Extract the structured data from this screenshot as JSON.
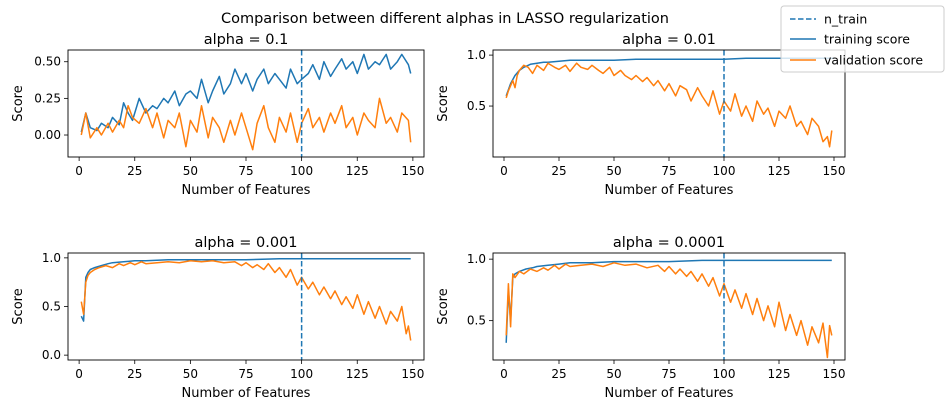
{
  "figure": {
    "suptitle": "Comparison between different alphas in LASSO regularization",
    "legend": {
      "placement": "top-right",
      "entries": [
        {
          "label": "n_train",
          "color": "#1f77b4",
          "style": "dashed"
        },
        {
          "label": "training score",
          "color": "#1f77b4",
          "style": "solid"
        },
        {
          "label": "validation score",
          "color": "#ff7f0e",
          "style": "solid"
        }
      ]
    }
  },
  "chart_data": [
    {
      "type": "line",
      "title": "alpha = 0.1",
      "xlabel": "Number of Features",
      "ylabel": "Score",
      "xlim": [
        -5,
        155
      ],
      "ylim": [
        -0.15,
        0.58
      ],
      "xticks": [
        0,
        25,
        50,
        75,
        100,
        125,
        150
      ],
      "yticks": [
        0.0,
        0.25,
        0.5
      ],
      "ytick_labels": [
        "0.00",
        "0.25",
        "0.50"
      ],
      "vline": 100,
      "series": [
        {
          "name": "training score",
          "color": "#1f77b4",
          "x": [
            1,
            3,
            5,
            8,
            10,
            13,
            15,
            18,
            20,
            22,
            24,
            27,
            30,
            33,
            35,
            38,
            40,
            43,
            45,
            48,
            50,
            53,
            55,
            58,
            60,
            63,
            65,
            68,
            70,
            73,
            75,
            78,
            80,
            83,
            85,
            88,
            90,
            93,
            95,
            98,
            100,
            103,
            105,
            108,
            110,
            113,
            115,
            118,
            120,
            123,
            125,
            128,
            130,
            133,
            135,
            138,
            140,
            143,
            145,
            148,
            149
          ],
          "values": [
            0.02,
            0.15,
            0.05,
            0.03,
            0.08,
            0.05,
            0.12,
            0.07,
            0.22,
            0.15,
            0.1,
            0.25,
            0.15,
            0.2,
            0.18,
            0.25,
            0.22,
            0.3,
            0.2,
            0.28,
            0.3,
            0.25,
            0.38,
            0.22,
            0.3,
            0.4,
            0.28,
            0.35,
            0.45,
            0.35,
            0.42,
            0.3,
            0.38,
            0.45,
            0.35,
            0.42,
            0.38,
            0.32,
            0.45,
            0.35,
            0.38,
            0.42,
            0.48,
            0.38,
            0.5,
            0.4,
            0.45,
            0.52,
            0.45,
            0.5,
            0.42,
            0.55,
            0.45,
            0.5,
            0.48,
            0.55,
            0.45,
            0.5,
            0.55,
            0.48,
            0.42
          ]
        },
        {
          "name": "validation score",
          "color": "#ff7f0e",
          "x": [
            1,
            3,
            5,
            8,
            10,
            13,
            15,
            18,
            20,
            22,
            24,
            27,
            30,
            33,
            35,
            38,
            40,
            43,
            45,
            48,
            50,
            53,
            55,
            58,
            60,
            63,
            65,
            68,
            70,
            73,
            75,
            78,
            80,
            83,
            85,
            88,
            90,
            93,
            95,
            98,
            100,
            103,
            105,
            108,
            110,
            113,
            115,
            118,
            120,
            123,
            125,
            128,
            130,
            133,
            135,
            138,
            140,
            143,
            145,
            148,
            149
          ],
          "values": [
            0.0,
            0.15,
            -0.02,
            0.05,
            0.0,
            0.08,
            0.02,
            0.1,
            0.05,
            0.2,
            0.12,
            0.08,
            0.18,
            0.05,
            0.15,
            -0.02,
            0.1,
            0.05,
            0.15,
            -0.08,
            0.1,
            0.02,
            0.2,
            -0.02,
            0.12,
            0.05,
            -0.05,
            0.1,
            0.0,
            0.15,
            0.05,
            -0.1,
            0.08,
            0.2,
            0.05,
            -0.05,
            0.12,
            0.02,
            0.15,
            -0.05,
            0.08,
            0.18,
            0.05,
            0.12,
            0.02,
            0.15,
            0.08,
            0.2,
            0.05,
            0.12,
            0.0,
            0.15,
            0.1,
            0.05,
            0.25,
            0.08,
            0.12,
            0.02,
            0.15,
            0.1,
            -0.05
          ]
        }
      ]
    },
    {
      "type": "line",
      "title": "alpha = 0.01",
      "xlabel": "Number of Features",
      "ylabel": "Score",
      "xlim": [
        -5,
        155
      ],
      "ylim": [
        0.0,
        1.05
      ],
      "xticks": [
        0,
        25,
        50,
        75,
        100,
        125,
        150
      ],
      "yticks": [
        0.5,
        1.0
      ],
      "ytick_labels": [
        "0.5",
        "1.0"
      ],
      "vline": 100,
      "series": [
        {
          "name": "training score",
          "color": "#1f77b4",
          "x": [
            1,
            3,
            5,
            7,
            9,
            12,
            15,
            18,
            20,
            25,
            30,
            35,
            40,
            50,
            60,
            70,
            80,
            90,
            100,
            110,
            120,
            125,
            130,
            135,
            140,
            145,
            150
          ],
          "values": [
            0.6,
            0.72,
            0.8,
            0.85,
            0.88,
            0.91,
            0.92,
            0.93,
            0.93,
            0.94,
            0.95,
            0.95,
            0.95,
            0.95,
            0.96,
            0.96,
            0.96,
            0.96,
            0.96,
            0.97,
            0.97,
            0.97,
            0.97,
            0.97,
            0.97,
            0.97,
            0.97
          ]
        },
        {
          "name": "validation score",
          "color": "#ff7f0e",
          "x": [
            1,
            2,
            3,
            4,
            5,
            6,
            7,
            9,
            11,
            13,
            15,
            18,
            20,
            23,
            25,
            28,
            30,
            33,
            35,
            38,
            40,
            43,
            45,
            48,
            50,
            53,
            55,
            58,
            60,
            63,
            65,
            68,
            70,
            73,
            75,
            78,
            80,
            83,
            85,
            88,
            90,
            93,
            95,
            98,
            100,
            103,
            105,
            108,
            110,
            113,
            115,
            118,
            120,
            123,
            125,
            128,
            130,
            133,
            135,
            138,
            140,
            143,
            145,
            147,
            148,
            149
          ],
          "values": [
            0.58,
            0.65,
            0.7,
            0.75,
            0.68,
            0.8,
            0.85,
            0.9,
            0.88,
            0.82,
            0.9,
            0.85,
            0.92,
            0.88,
            0.86,
            0.9,
            0.84,
            0.92,
            0.88,
            0.86,
            0.9,
            0.85,
            0.82,
            0.88,
            0.8,
            0.85,
            0.8,
            0.76,
            0.8,
            0.74,
            0.78,
            0.7,
            0.75,
            0.65,
            0.72,
            0.6,
            0.7,
            0.66,
            0.55,
            0.68,
            0.6,
            0.5,
            0.65,
            0.42,
            0.55,
            0.45,
            0.62,
            0.4,
            0.5,
            0.35,
            0.55,
            0.42,
            0.48,
            0.3,
            0.45,
            0.38,
            0.5,
            0.3,
            0.35,
            0.22,
            0.38,
            0.3,
            0.15,
            0.2,
            0.1,
            0.26
          ]
        }
      ]
    },
    {
      "type": "line",
      "title": "alpha = 0.001",
      "xlabel": "Number of Features",
      "ylabel": "Score",
      "xlim": [
        -5,
        155
      ],
      "ylim": [
        -0.05,
        1.05
      ],
      "xticks": [
        0,
        25,
        50,
        75,
        100,
        125,
        150
      ],
      "yticks": [
        0.0,
        0.5,
        1.0
      ],
      "ytick_labels": [
        "0.0",
        "0.5",
        "1.0"
      ],
      "vline": 100,
      "series": [
        {
          "name": "training score",
          "color": "#1f77b4",
          "x": [
            1,
            2,
            3,
            4,
            5,
            7,
            10,
            13,
            15,
            20,
            25,
            30,
            40,
            50,
            60,
            75,
            90,
            100,
            110,
            125,
            135,
            149
          ],
          "values": [
            0.4,
            0.35,
            0.8,
            0.85,
            0.88,
            0.9,
            0.92,
            0.94,
            0.95,
            0.96,
            0.97,
            0.97,
            0.98,
            0.98,
            0.98,
            0.98,
            0.99,
            0.99,
            0.99,
            0.99,
            0.99,
            0.99
          ]
        },
        {
          "name": "validation score",
          "color": "#ff7f0e",
          "x": [
            1,
            2,
            3,
            4,
            5,
            7,
            9,
            12,
            15,
            18,
            20,
            23,
            25,
            28,
            30,
            35,
            40,
            45,
            50,
            55,
            60,
            65,
            70,
            73,
            75,
            78,
            80,
            83,
            85,
            88,
            90,
            93,
            95,
            98,
            100,
            103,
            105,
            108,
            110,
            113,
            115,
            118,
            120,
            123,
            125,
            128,
            130,
            133,
            135,
            138,
            140,
            143,
            145,
            147,
            148,
            149
          ],
          "values": [
            0.55,
            0.42,
            0.75,
            0.82,
            0.85,
            0.88,
            0.9,
            0.92,
            0.9,
            0.94,
            0.92,
            0.95,
            0.93,
            0.96,
            0.94,
            0.95,
            0.96,
            0.95,
            0.97,
            0.96,
            0.97,
            0.95,
            0.96,
            0.92,
            0.95,
            0.9,
            0.93,
            0.88,
            0.94,
            0.85,
            0.9,
            0.8,
            0.88,
            0.72,
            0.8,
            0.68,
            0.75,
            0.62,
            0.7,
            0.58,
            0.66,
            0.52,
            0.6,
            0.48,
            0.62,
            0.42,
            0.55,
            0.38,
            0.5,
            0.32,
            0.45,
            0.35,
            0.5,
            0.22,
            0.3,
            0.15
          ]
        }
      ]
    },
    {
      "type": "line",
      "title": "alpha = 0.0001",
      "xlabel": "Number of Features",
      "ylabel": "Score",
      "xlim": [
        -5,
        155
      ],
      "ylim": [
        0.18,
        1.05
      ],
      "xticks": [
        0,
        25,
        50,
        75,
        100,
        125,
        150
      ],
      "yticks": [
        0.5,
        1.0
      ],
      "ytick_labels": [
        "0.5",
        "1.0"
      ],
      "vline": 100,
      "series": [
        {
          "name": "training score",
          "color": "#1f77b4",
          "x": [
            1,
            2,
            3,
            4,
            5,
            7,
            10,
            13,
            15,
            20,
            25,
            30,
            40,
            50,
            60,
            75,
            90,
            100,
            110,
            125,
            135,
            149
          ],
          "values": [
            0.32,
            0.75,
            0.5,
            0.85,
            0.88,
            0.9,
            0.92,
            0.93,
            0.94,
            0.95,
            0.96,
            0.97,
            0.97,
            0.98,
            0.98,
            0.98,
            0.99,
            0.99,
            0.99,
            0.99,
            0.99,
            0.99
          ]
        },
        {
          "name": "validation score",
          "color": "#ff7f0e",
          "x": [
            1,
            2,
            3,
            4,
            5,
            7,
            9,
            12,
            15,
            18,
            20,
            23,
            25,
            28,
            30,
            35,
            40,
            45,
            50,
            55,
            60,
            65,
            70,
            73,
            75,
            78,
            80,
            83,
            85,
            88,
            90,
            93,
            95,
            98,
            100,
            103,
            105,
            108,
            110,
            113,
            115,
            118,
            120,
            123,
            125,
            128,
            130,
            133,
            135,
            138,
            140,
            143,
            145,
            147,
            148,
            149
          ],
          "values": [
            0.38,
            0.8,
            0.45,
            0.88,
            0.85,
            0.9,
            0.88,
            0.92,
            0.9,
            0.93,
            0.91,
            0.95,
            0.92,
            0.96,
            0.94,
            0.95,
            0.96,
            0.94,
            0.97,
            0.95,
            0.96,
            0.93,
            0.95,
            0.9,
            0.94,
            0.88,
            0.92,
            0.86,
            0.9,
            0.82,
            0.88,
            0.78,
            0.85,
            0.7,
            0.8,
            0.65,
            0.75,
            0.6,
            0.72,
            0.55,
            0.68,
            0.5,
            0.62,
            0.45,
            0.65,
            0.42,
            0.55,
            0.38,
            0.5,
            0.3,
            0.45,
            0.32,
            0.48,
            0.2,
            0.46,
            0.38
          ]
        }
      ]
    }
  ]
}
